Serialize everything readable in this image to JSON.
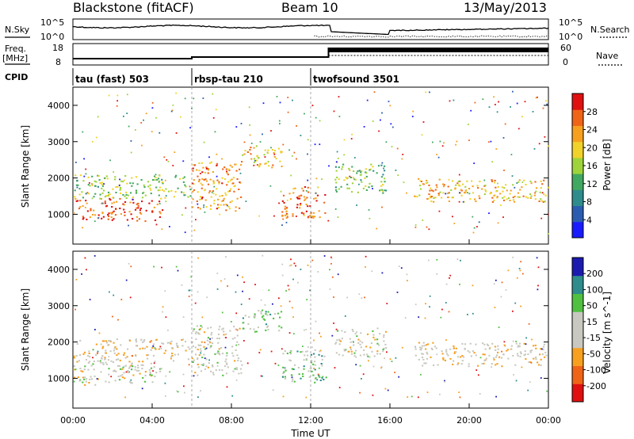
{
  "header": {
    "station": "Blackstone (fitACF)",
    "beam": "Beam 10",
    "date": "13/May/2013"
  },
  "top_strip": {
    "nsky_label": "N.Sky",
    "nsearch_label": "N.Search",
    "freq_label_1": "Freq.",
    "freq_label_2": "[MHz]",
    "nave_label": "Nave",
    "cpid_label": "CPID",
    "noise_ticks": [
      "10^5",
      "10^0"
    ],
    "freq_ticks": [
      "18",
      "8"
    ],
    "nave_ticks": [
      "60",
      "0"
    ]
  },
  "cpid_segments": [
    {
      "label": "tau (fast) 503",
      "start_hour": 0
    },
    {
      "label": "rbsp-tau 210",
      "start_hour": 6
    },
    {
      "label": "twofsound 3501",
      "start_hour": 12
    }
  ],
  "axes": {
    "xlabel": "Time UT",
    "ylabel": "Slant Range [km]",
    "x_ticks": [
      "00:00",
      "04:00",
      "08:00",
      "12:00",
      "16:00",
      "20:00",
      "00:00"
    ],
    "y_ticks": [
      "1000",
      "2000",
      "3000",
      "4000"
    ],
    "xlim_hours": [
      0,
      24
    ],
    "ylim_km": [
      180,
      4500
    ]
  },
  "chart_data": [
    {
      "type": "heatmap",
      "name": "power",
      "colorbar_label": "Power [dB]",
      "colorbar_ticks": [
        "28",
        "24",
        "20",
        "16",
        "12",
        "8",
        "4"
      ],
      "colorbar_range": [
        0,
        30
      ],
      "colors": [
        "#1a1aff",
        "#2a5db0",
        "#2f8c8c",
        "#40a860",
        "#9ed43a",
        "#f0d22a",
        "#f7a020",
        "#f06418",
        "#e01010"
      ],
      "scatter_bands": [
        {
          "t0": 0,
          "t1": 4.5,
          "r0": 820,
          "r1": 1450,
          "v": 26
        },
        {
          "t0": 0,
          "t1": 6,
          "r0": 1450,
          "r1": 2100,
          "v": 15
        },
        {
          "t0": 6,
          "t1": 8.5,
          "r0": 1100,
          "r1": 2500,
          "v": 22
        },
        {
          "t0": 8.5,
          "t1": 10.5,
          "r0": 2300,
          "r1": 2900,
          "v": 20
        },
        {
          "t0": 10.5,
          "t1": 12.8,
          "r0": 900,
          "r1": 1800,
          "v": 24
        },
        {
          "t0": 13.2,
          "t1": 15.8,
          "r0": 1600,
          "r1": 2400,
          "v": 14
        },
        {
          "t0": 17.2,
          "t1": 24,
          "r0": 1350,
          "r1": 2000,
          "v": 20
        }
      ]
    },
    {
      "type": "heatmap",
      "name": "velocity",
      "colorbar_label": "Velocity [m s^-1]",
      "colorbar_ticks": [
        "200",
        "100",
        "50",
        "15",
        "-15",
        "-50",
        "-100",
        "-200"
      ],
      "colorbar_range": [
        -250,
        250
      ],
      "colors": [
        "#e01010",
        "#f06418",
        "#f7a020",
        "#c8c8c0",
        "#c8c8c0",
        "#50c040",
        "#2f8c8c",
        "#1a1aaf"
      ],
      "scatter_bands": [
        {
          "t0": 0,
          "t1": 4.5,
          "r0": 820,
          "r1": 1450,
          "v": 0
        },
        {
          "t0": 0,
          "t1": 6,
          "r0": 1450,
          "r1": 2100,
          "v": -40
        },
        {
          "t0": 6,
          "t1": 8.5,
          "r0": 1100,
          "r1": 2500,
          "v": 0
        },
        {
          "t0": 8.5,
          "t1": 10.5,
          "r0": 2300,
          "r1": 2900,
          "v": 60
        },
        {
          "t0": 10.5,
          "t1": 12.8,
          "r0": 900,
          "r1": 1800,
          "v": 70
        },
        {
          "t0": 13.2,
          "t1": 15.8,
          "r0": 1600,
          "r1": 2400,
          "v": 0
        },
        {
          "t0": 17.2,
          "t1": 24,
          "r0": 1350,
          "r1": 2000,
          "v": -30
        }
      ]
    }
  ]
}
